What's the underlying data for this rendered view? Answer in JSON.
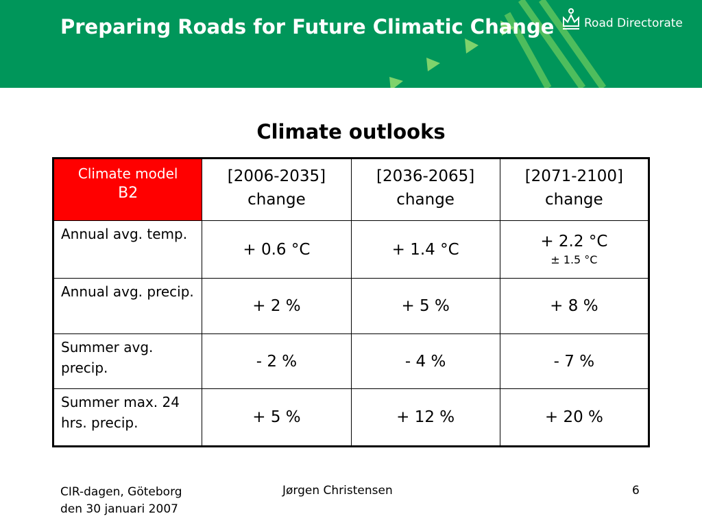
{
  "header": {
    "deck_title": "Preparing Roads for Future Climatic Change",
    "logo_text": "Road Directorate",
    "background_color": "#00965a",
    "logo_icon": "crown-icon"
  },
  "slide": {
    "title": "Climate outlooks"
  },
  "table": {
    "model_cell": {
      "name": "Climate model",
      "scenario": "B2",
      "color": "#ff0000"
    },
    "periods": [
      {
        "range": "[2006-2035]",
        "unit": "change"
      },
      {
        "range": "[2036-2065]",
        "unit": "change"
      },
      {
        "range": "[2071-2100]",
        "unit": "change"
      }
    ],
    "rows": [
      {
        "label": "Annual avg. temp.",
        "values": [
          "+ 0.6 °C",
          "+ 1.4 °C",
          "+ 2.2 °C"
        ],
        "note": "± 1.5 °C"
      },
      {
        "label": "Annual avg. precip.",
        "values": [
          "+ 2 %",
          "+ 5 %",
          "+ 8 %"
        ]
      },
      {
        "label": "Summer avg. precip.",
        "values": [
          "-  2 %",
          "-  4 %",
          "-  7 %"
        ]
      },
      {
        "label": "Summer max. 24 hrs. precip.",
        "values": [
          "+ 5 %",
          "+ 12 %",
          "+ 20 %"
        ]
      }
    ]
  },
  "footer": {
    "event": "CIR-dagen, Göteborg den 30 januari 2007",
    "presenter": "Jørgen Christensen",
    "page_number": "6"
  }
}
